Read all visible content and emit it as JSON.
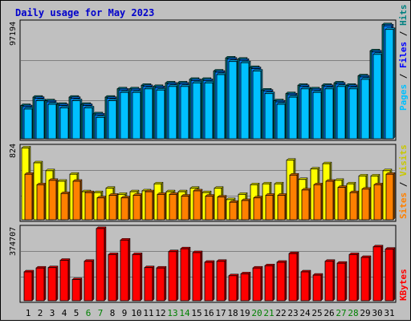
{
  "title": "Daily usage for May 2023",
  "colors": {
    "title": "#0000cc",
    "background": "#c0c0c0",
    "pages": "#00c0ff",
    "files": "#0080ff",
    "hits": "#008080",
    "sites": "#ff8000",
    "visits": "#ffff00",
    "kbytes": "#ff0000",
    "weekend_label": "#008000"
  },
  "labels": {
    "pages": "Pages",
    "files": "Files",
    "hits": "Hits",
    "sites": "Sites",
    "visits": "Visits",
    "kbytes": "KBytes",
    "sep": " / "
  },
  "chart_data": [
    {
      "type": "bar",
      "panel": "hits-files-pages",
      "max_label": "97194",
      "ylim": [
        0,
        97194
      ],
      "categories": [
        "1",
        "2",
        "3",
        "4",
        "5",
        "6",
        "7",
        "8",
        "9",
        "10",
        "11",
        "12",
        "13",
        "14",
        "15",
        "16",
        "17",
        "18",
        "19",
        "20",
        "21",
        "22",
        "23",
        "24",
        "25",
        "26",
        "27",
        "28",
        "29",
        "30",
        "31"
      ],
      "weekend_days": [
        6,
        7,
        13,
        14,
        20,
        21,
        27,
        28
      ],
      "series": [
        {
          "name": "Hits",
          "values": [
            28000,
            35000,
            32000,
            29000,
            35000,
            29000,
            21000,
            35000,
            42000,
            42000,
            45000,
            44000,
            47000,
            47000,
            50000,
            50000,
            57000,
            68000,
            67000,
            60000,
            41000,
            32000,
            38000,
            45000,
            42000,
            45000,
            47000,
            45000,
            53000,
            74000,
            96000
          ]
        },
        {
          "name": "Files",
          "values": [
            27000,
            34000,
            31000,
            28000,
            34000,
            28000,
            20000,
            34000,
            41000,
            41000,
            44000,
            43000,
            46000,
            46000,
            49000,
            49000,
            56000,
            67000,
            66000,
            59000,
            40000,
            31000,
            37000,
            44000,
            41000,
            44000,
            46000,
            44000,
            52000,
            73000,
            95000
          ]
        },
        {
          "name": "Pages",
          "values": [
            25000,
            32000,
            29000,
            26000,
            32000,
            26000,
            18000,
            32000,
            39000,
            39000,
            42000,
            41000,
            44000,
            44000,
            47000,
            47000,
            54000,
            65000,
            64000,
            57000,
            38000,
            29000,
            35000,
            42000,
            39000,
            42000,
            44000,
            42000,
            50000,
            71000,
            92000
          ]
        }
      ]
    },
    {
      "type": "bar",
      "panel": "visits-sites",
      "max_label": "824",
      "ylim": [
        0,
        824
      ],
      "categories": [
        "1",
        "2",
        "3",
        "4",
        "5",
        "6",
        "7",
        "8",
        "9",
        "10",
        "11",
        "12",
        "13",
        "14",
        "15",
        "16",
        "17",
        "18",
        "19",
        "20",
        "21",
        "22",
        "23",
        "24",
        "25",
        "26",
        "27",
        "28",
        "29",
        "30",
        "31"
      ],
      "series": [
        {
          "name": "Visits",
          "values": [
            820,
            650,
            560,
            440,
            520,
            320,
            310,
            360,
            290,
            320,
            330,
            410,
            320,
            320,
            360,
            310,
            360,
            230,
            290,
            400,
            410,
            410,
            680,
            460,
            580,
            640,
            450,
            410,
            500,
            500,
            560
          ]
        },
        {
          "name": "Sites",
          "values": [
            520,
            400,
            450,
            300,
            440,
            310,
            250,
            280,
            250,
            280,
            320,
            290,
            290,
            270,
            330,
            270,
            260,
            200,
            220,
            250,
            280,
            280,
            510,
            340,
            400,
            440,
            370,
            310,
            350,
            400,
            520
          ]
        }
      ]
    },
    {
      "type": "bar",
      "panel": "kbytes",
      "max_label": "374707",
      "ylim": [
        0,
        374707
      ],
      "categories": [
        "1",
        "2",
        "3",
        "4",
        "5",
        "6",
        "7",
        "8",
        "9",
        "10",
        "11",
        "12",
        "13",
        "14",
        "15",
        "16",
        "17",
        "18",
        "19",
        "20",
        "21",
        "22",
        "23",
        "24",
        "25",
        "26",
        "27",
        "28",
        "29",
        "30",
        "31"
      ],
      "series": [
        {
          "name": "KBytes",
          "values": [
            150000,
            170000,
            172000,
            210000,
            110000,
            205000,
            375000,
            240000,
            315000,
            240000,
            172000,
            170000,
            255000,
            270000,
            250000,
            200000,
            205000,
            130000,
            140000,
            170000,
            182000,
            200000,
            245000,
            150000,
            133000,
            205000,
            195000,
            240000,
            225000,
            280000,
            268000
          ]
        }
      ]
    }
  ]
}
